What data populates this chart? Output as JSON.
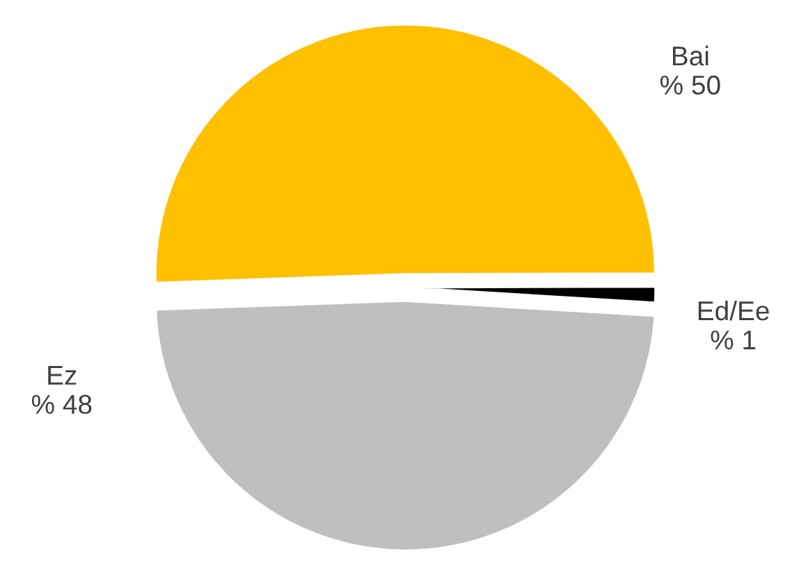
{
  "chart_data": {
    "type": "pie",
    "categories": [
      "Bai",
      "Ed/Ee",
      "Ez"
    ],
    "values": [
      50,
      1,
      48
    ],
    "colors": [
      "#ffc000",
      "#000000",
      "#bfbfbf"
    ],
    "value_labels": [
      "% 50",
      "% 1",
      "% 48"
    ],
    "legend": false
  }
}
